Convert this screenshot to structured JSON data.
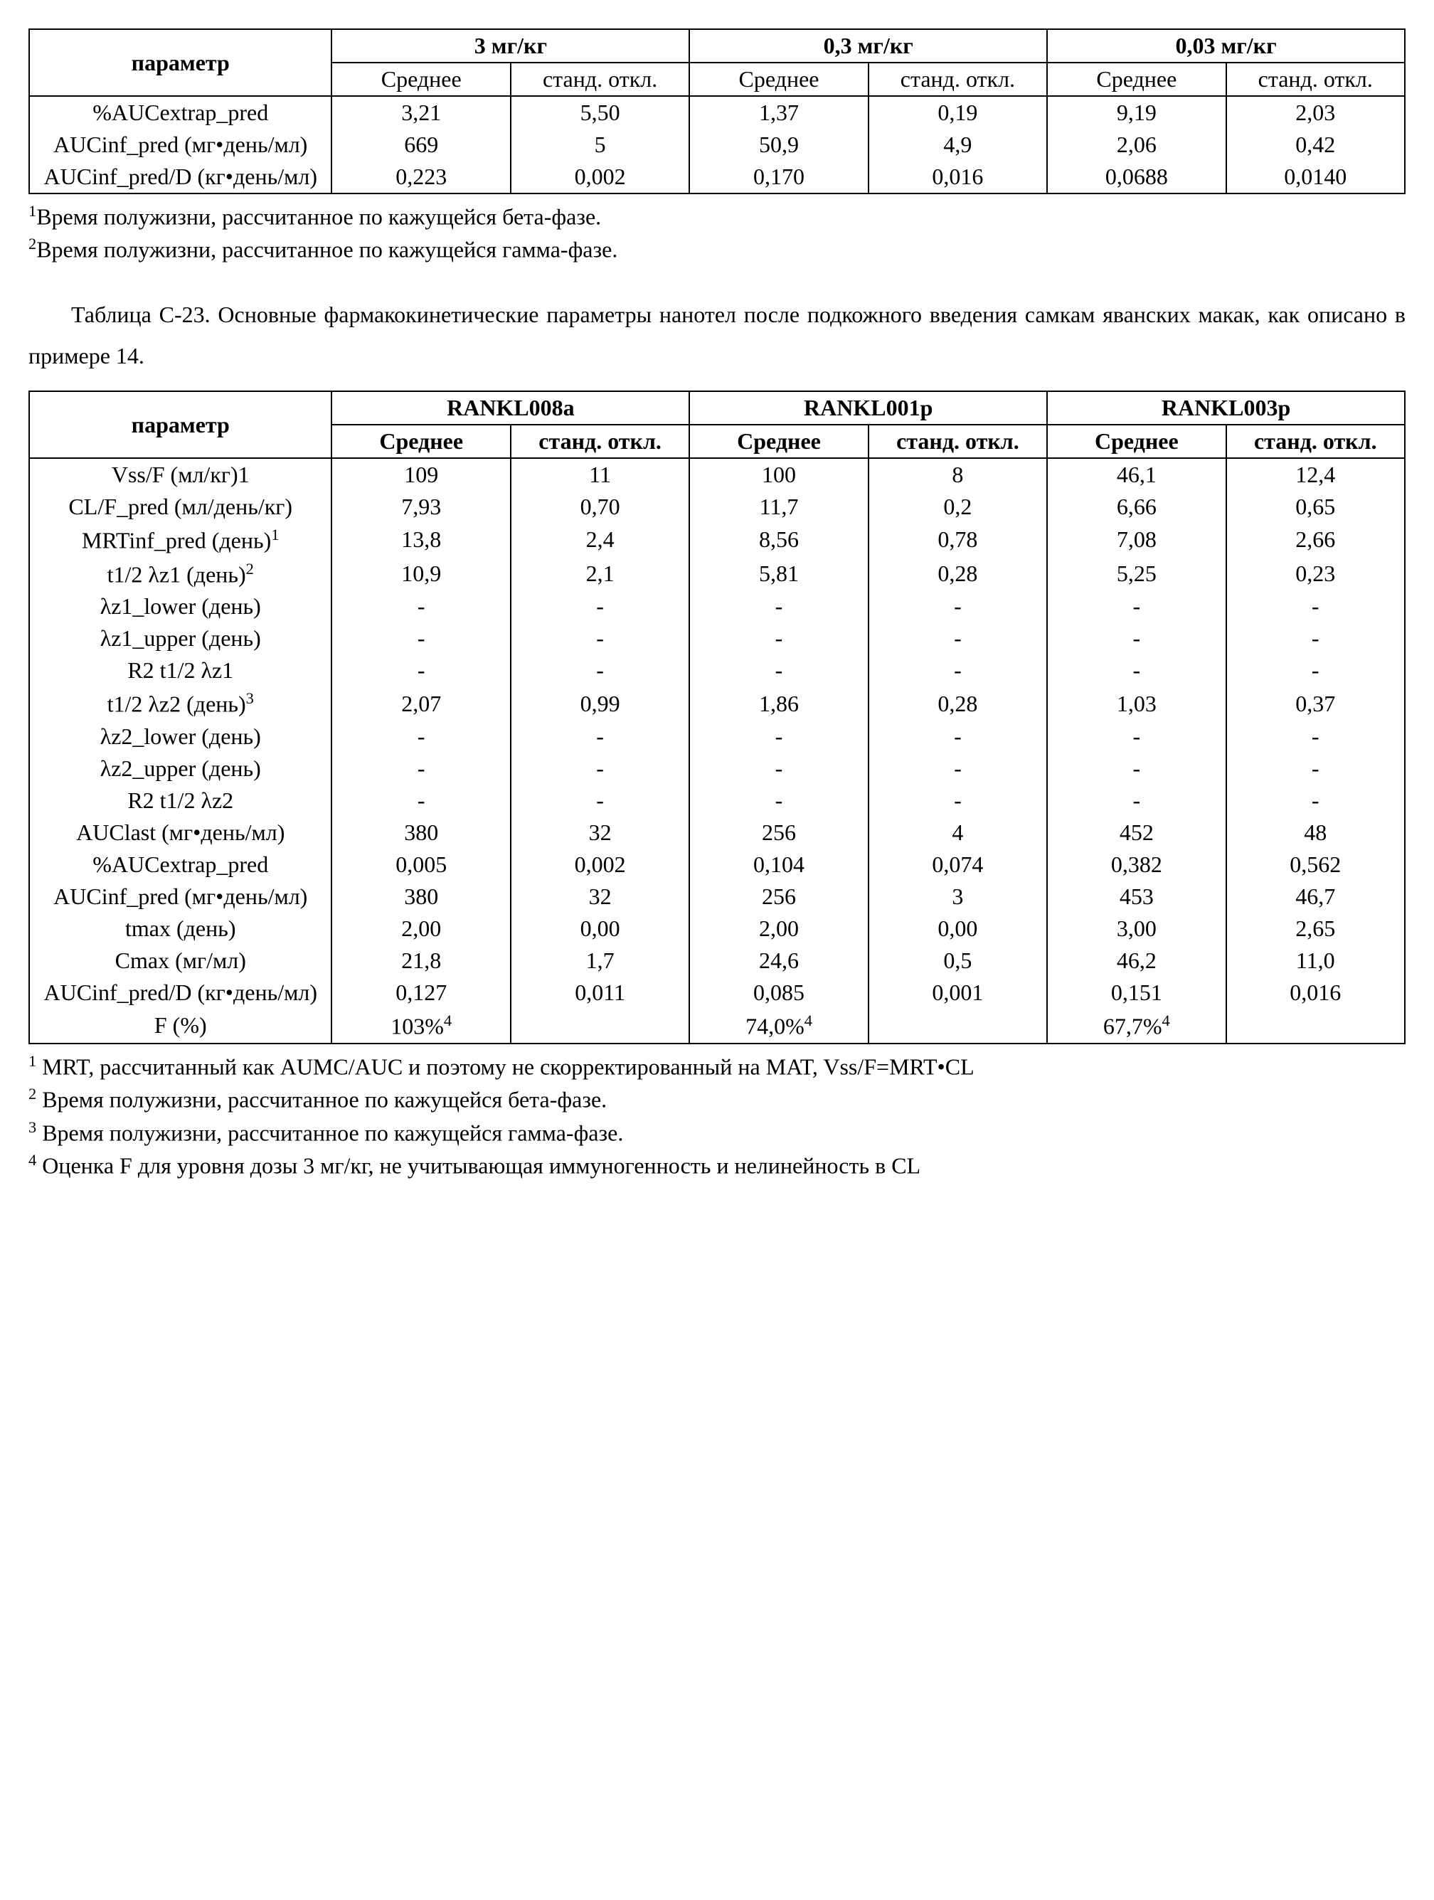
{
  "table1": {
    "header_groups": [
      "3 мг/кг",
      "0,3 мг/кг",
      "0,03 мг/кг"
    ],
    "param_header": "параметр",
    "sub_headers": [
      "Среднее",
      "станд. откл.",
      "Среднее",
      "станд. откл.",
      "Среднее",
      "станд. откл."
    ],
    "rows": [
      {
        "param": "%AUCextrap_pred",
        "v": [
          "3,21",
          "5,50",
          "1,37",
          "0,19",
          "9,19",
          "2,03"
        ]
      },
      {
        "param": "AUCinf_pred (мг•день/мл)",
        "v": [
          "669",
          "5",
          "50,9",
          "4,9",
          "2,06",
          "0,42"
        ]
      },
      {
        "param": "AUCinf_pred/D (кг•день/мл)",
        "v": [
          "0,223",
          "0,002",
          "0,170",
          "0,016",
          "0,0688",
          "0,0140"
        ]
      }
    ],
    "footnotes": [
      {
        "sup": "1",
        "text": "Время полужизни, рассчитанное по кажущейся бета-фазе."
      },
      {
        "sup": "2",
        "text": "Время полужизни, рассчитанное по кажущейся гамма-фазе."
      }
    ]
  },
  "caption": "Таблица С-23. Основные фармакокинетические параметры нанотел после подкожного введения самкам яванских макак, как описано в примере 14.",
  "table2": {
    "header_groups": [
      "RANKL008a",
      "RANKL001p",
      "RANKL003p"
    ],
    "param_header": "параметр",
    "sub_headers": [
      "Среднее",
      "станд. откл.",
      "Среднее",
      "станд. откл.",
      "Среднее",
      "станд. откл."
    ],
    "rows": [
      {
        "param": "Vss/F (мл/кг)1",
        "v": [
          "109",
          "11",
          "100",
          "8",
          "46,1",
          "12,4"
        ]
      },
      {
        "param": "CL/F_pred (мл/день/кг)",
        "v": [
          "7,93",
          "0,70",
          "11,7",
          "0,2",
          "6,66",
          "0,65"
        ]
      },
      {
        "param_html": "MRTinf_pred (день)<sup>1</sup>",
        "v": [
          "13,8",
          "2,4",
          "8,56",
          "0,78",
          "7,08",
          "2,66"
        ]
      },
      {
        "param_html": "t1/2 λz1 (день)<sup>2</sup>",
        "v": [
          "10,9",
          "2,1",
          "5,81",
          "0,28",
          "5,25",
          "0,23"
        ]
      },
      {
        "param": "λz1_lower (день)",
        "v": [
          "-",
          "-",
          "-",
          "-",
          "-",
          "-"
        ]
      },
      {
        "param": "λz1_upper (день)",
        "v": [
          "-",
          "-",
          "-",
          "-",
          "-",
          "-"
        ]
      },
      {
        "param": "R2 t1/2 λz1",
        "v": [
          "-",
          "-",
          "-",
          "-",
          "-",
          "-"
        ]
      },
      {
        "param_html": "t1/2 λz2 (день)<sup>3</sup>",
        "v": [
          "2,07",
          "0,99",
          "1,86",
          "0,28",
          "1,03",
          "0,37"
        ]
      },
      {
        "param": "λz2_lower (день)",
        "v": [
          "-",
          "-",
          "-",
          "-",
          "-",
          "-"
        ]
      },
      {
        "param": "λz2_upper (день)",
        "v": [
          "-",
          "-",
          "-",
          "-",
          "-",
          "-"
        ]
      },
      {
        "param": "R2 t1/2 λz2",
        "v": [
          "-",
          "-",
          "-",
          "-",
          "-",
          "-"
        ]
      },
      {
        "param": "AUClast (мг•день/мл)",
        "v": [
          "380",
          "32",
          "256",
          "4",
          "452",
          "48"
        ]
      },
      {
        "param": "%AUCextrap_pred",
        "v": [
          "0,005",
          "0,002",
          "0,104",
          "0,074",
          "0,382",
          "0,562"
        ]
      },
      {
        "param": "AUCinf_pred (мг•день/мл)",
        "v": [
          "380",
          "32",
          "256",
          "3",
          "453",
          "46,7"
        ]
      },
      {
        "param": "tmax (день)",
        "v": [
          "2,00",
          "0,00",
          "2,00",
          "0,00",
          "3,00",
          "2,65"
        ]
      },
      {
        "param": "Cmax (мг/мл)",
        "v": [
          "21,8",
          "1,7",
          "24,6",
          "0,5",
          "46,2",
          "11,0"
        ]
      },
      {
        "param": "AUCinf_pred/D (кг•день/мл)",
        "v": [
          "0,127",
          "0,011",
          "0,085",
          "0,001",
          "0,151",
          "0,016"
        ]
      },
      {
        "param": "F (%)",
        "v_html": [
          "103%<sup>4</sup>",
          "",
          "74,0%<sup>4</sup>",
          "",
          "67,7%<sup>4</sup>",
          ""
        ]
      }
    ],
    "footnotes": [
      {
        "sup": "1",
        "text": " MRT, рассчитанный как AUMC/AUC и поэтому не скорректированный на MAT, Vss/F=MRT•CL"
      },
      {
        "sup": "2",
        "text": " Время полужизни, рассчитанное по кажущейся бета-фазе."
      },
      {
        "sup": "3",
        "text": " Время полужизни, рассчитанное по кажущейся гамма-фазе."
      },
      {
        "sup": "4",
        "text": " Оценка F для уровня дозы 3 мг/кг, не учитывающая иммуногенность и нелинейность в CL"
      }
    ]
  }
}
